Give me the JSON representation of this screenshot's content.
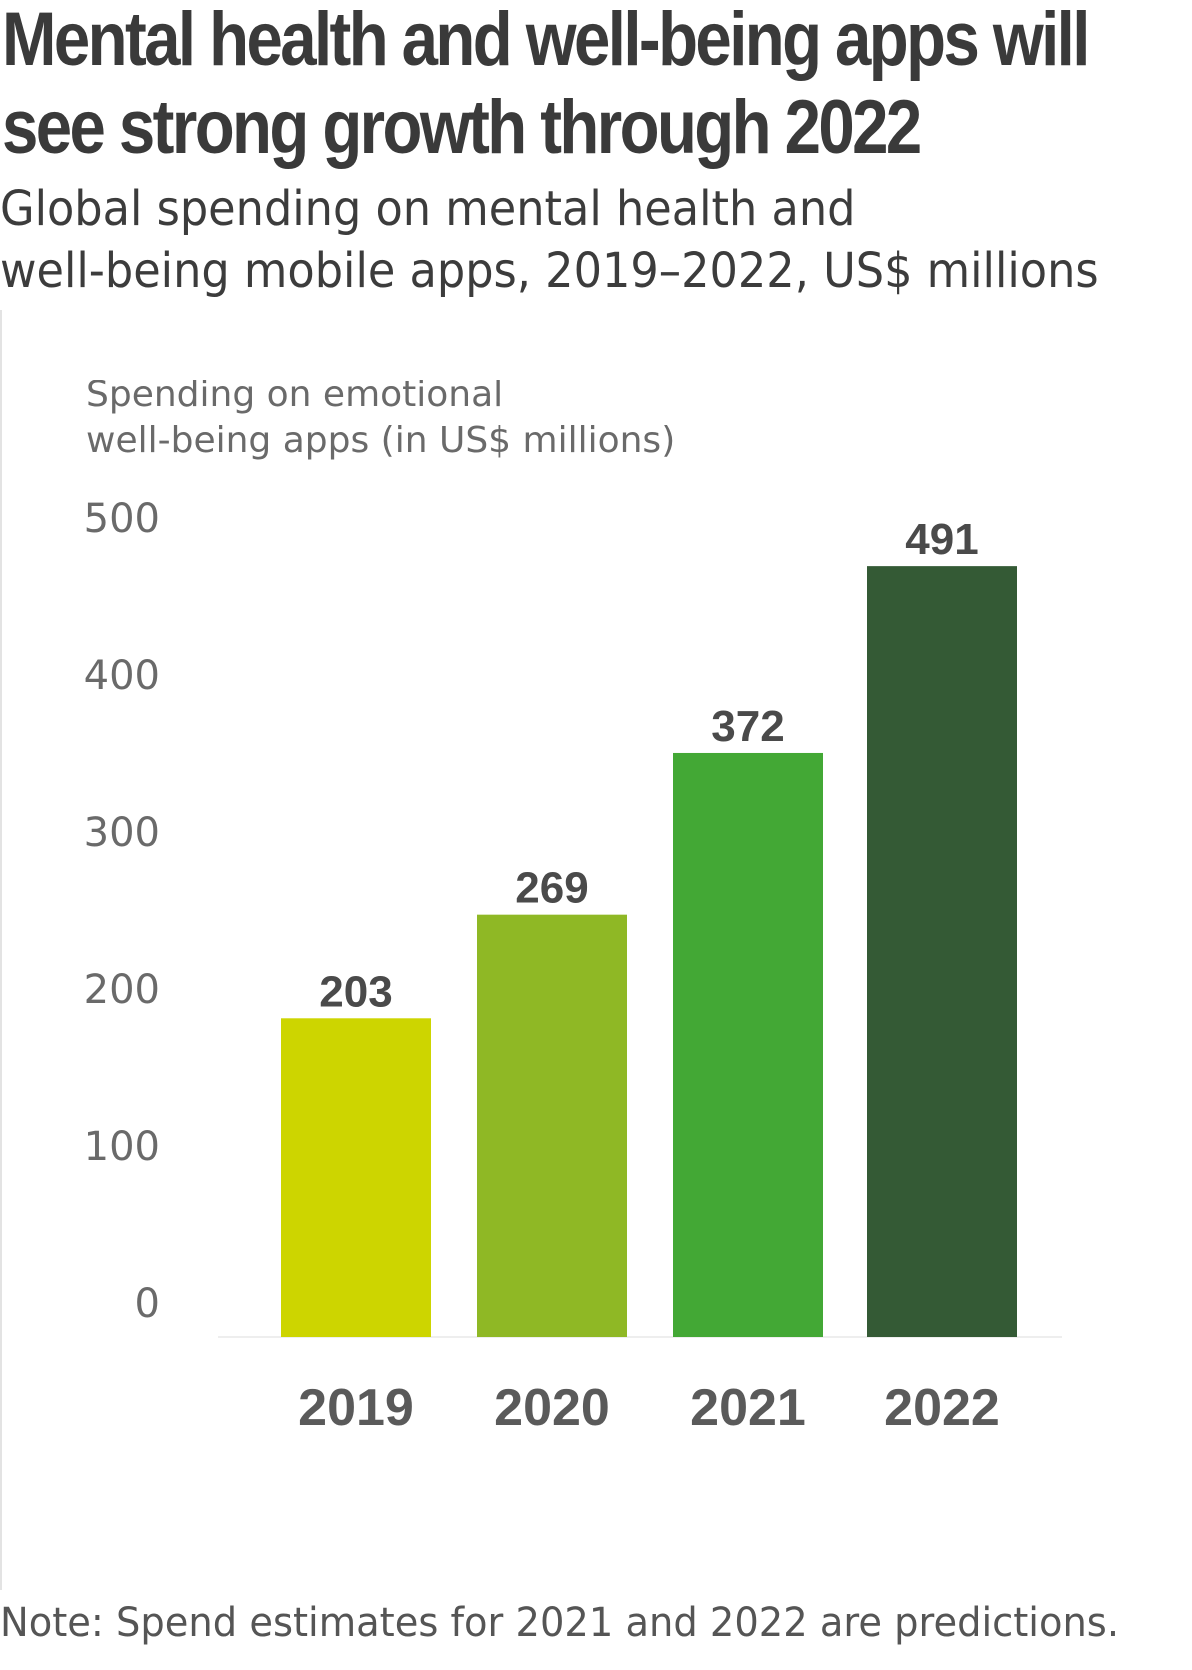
{
  "header": {
    "title_lines": [
      "Mental health and well-being apps will",
      "see strong growth through 2022"
    ],
    "subtitle_lines": [
      "Global spending on mental health and",
      "well-being mobile apps, 2019–2022, US$ millions"
    ]
  },
  "chart_data": {
    "type": "bar",
    "ylabel_lines": [
      "Spending on emotional",
      "well-being apps (in US$ millions)"
    ],
    "categories": [
      "2019",
      "2020",
      "2021",
      "2022"
    ],
    "values": [
      203,
      269,
      372,
      491
    ],
    "data_labels": [
      "203",
      "269",
      "372",
      "491"
    ],
    "bar_colors": [
      "#cdd500",
      "#8fb825",
      "#43a835",
      "#345a35"
    ],
    "ylim": [
      0,
      500
    ],
    "yticks": [
      0,
      100,
      200,
      300,
      400,
      500
    ],
    "grid": false,
    "legend": false
  },
  "footer": {
    "note": "Note: Spend estimates for 2021 and 2022 are predictions."
  }
}
